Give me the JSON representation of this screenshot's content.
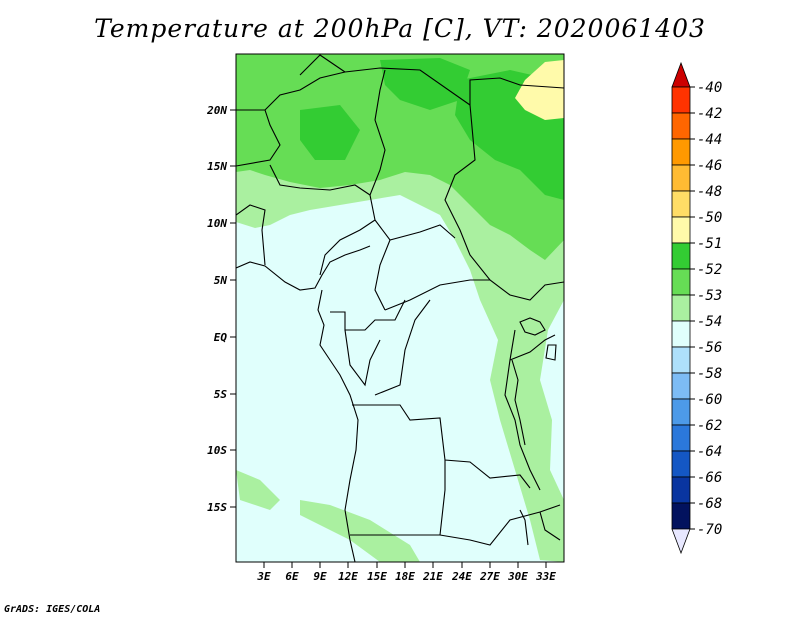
{
  "title": "Temperature at 200hPa [C], VT: 2020061403",
  "credit": "GrADS: IGES/COLA",
  "map": {
    "lat_labels": [
      "20N",
      "15N",
      "10N",
      "5N",
      "EQ",
      "5S",
      "10S",
      "15S"
    ],
    "lon_labels": [
      "3E",
      "6E",
      "9E",
      "12E",
      "15E",
      "18E",
      "21E",
      "24E",
      "27E",
      "30E",
      "33E"
    ]
  },
  "colorbar": {
    "levels": [
      "-40",
      "-42",
      "-44",
      "-46",
      "-48",
      "-50",
      "-51",
      "-52",
      "-53",
      "-54",
      "-56",
      "-58",
      "-60",
      "-62",
      "-64",
      "-66",
      "-68",
      "-70"
    ],
    "colors": [
      "#d00000",
      "#ff3300",
      "#ff6600",
      "#ff9900",
      "#ffbb33",
      "#ffdd66",
      "#fffaaa",
      "#33cc33",
      "#66dd55",
      "#aaf0a0",
      "#e0fffc",
      "#aee0fb",
      "#7dbcf5",
      "#4d9ae8",
      "#2b78db",
      "#1457c4",
      "#0935a0",
      "#02125e"
    ],
    "top_color": "#cc0000",
    "bottom_color": "#e8e8ff"
  }
}
